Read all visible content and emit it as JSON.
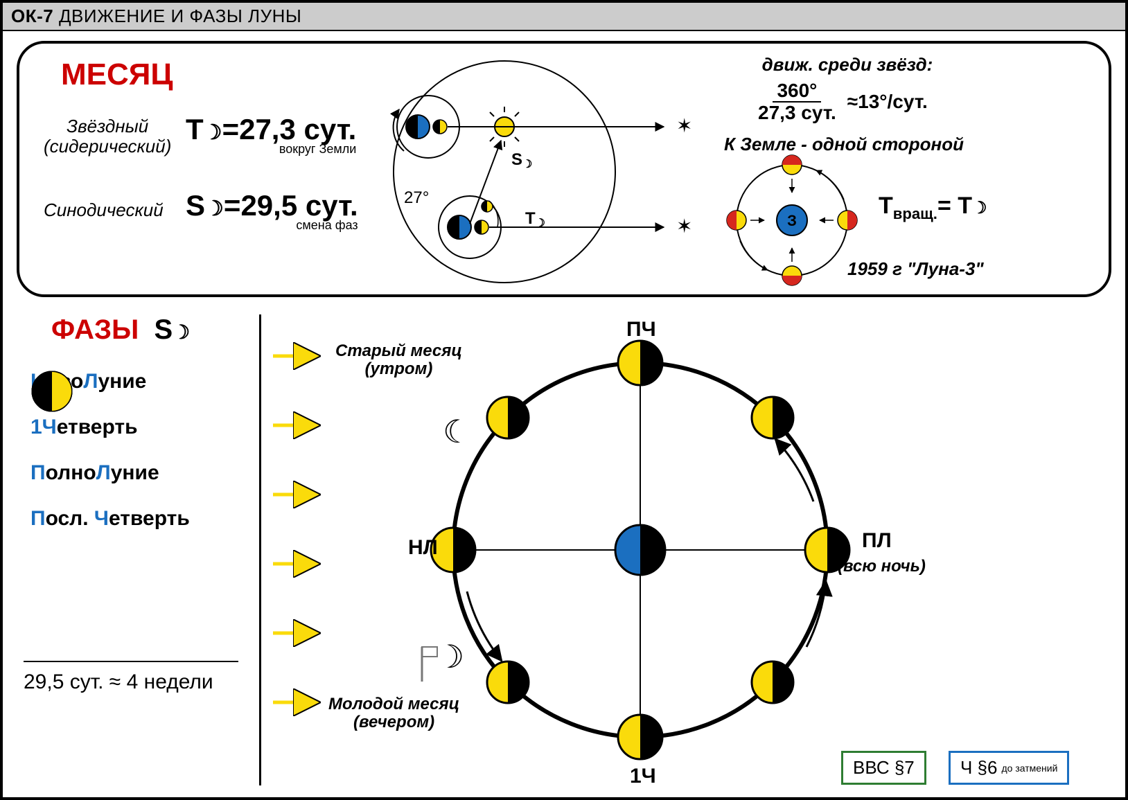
{
  "colors": {
    "yellow": "#fadb0b",
    "blue": "#1b6fc0",
    "red": "#d6271e",
    "black": "#000000",
    "gray": "#cccccc",
    "green": "#2e7d32",
    "blueBox": "#1b6fc0"
  },
  "header": {
    "code": "ОК-7",
    "title": " ДВИЖЕНИЕ И ФАЗЫ ЛУНЫ"
  },
  "month": {
    "heading": "МЕСЯЦ",
    "sidereal": {
      "label1": "Звёздный",
      "label2": "(сидерический)",
      "formula": "T",
      "formula_rhs": "=27,3 сут.",
      "note": "вокруг Земли"
    },
    "synodic": {
      "label": "Синодический",
      "formula": "S",
      "formula_rhs": "=29,5 сут.",
      "note": "смена фаз"
    },
    "diagram": {
      "angle": "27°",
      "S_label": "S",
      "T_label": "T"
    },
    "starMotion": {
      "title": "движ. среди звёзд:",
      "num": "360°",
      "den": "27,3 сут.",
      "approx": "≈13°/сут."
    },
    "oneSide": {
      "title": "К Земле - одной стороной",
      "center": "З",
      "formula_lhs": "T",
      "formula_sub": "вращ.",
      "formula_rhs": "= T",
      "footer": "1959 г  \"Луна-3\""
    }
  },
  "phases": {
    "heading": "ФАЗЫ",
    "heading_sym": "S",
    "items": [
      {
        "type": "new",
        "text": [
          "Н",
          "ово",
          "Л",
          "уние"
        ]
      },
      {
        "type": "first",
        "text": [
          "1Ч",
          "етверть"
        ]
      },
      {
        "type": "full",
        "text": [
          "П",
          "олно",
          "Л",
          "уние"
        ]
      },
      {
        "type": "last",
        "text": [
          "П",
          "осл. ",
          "Ч",
          "етверть"
        ]
      }
    ],
    "summary": "29,5 сут. ≈ 4 недели"
  },
  "big": {
    "labels": {
      "top": "ПЧ",
      "left": "НЛ",
      "right": "ПЛ",
      "right_note": "(всю ночь)",
      "bottom": "1Ч"
    },
    "old": {
      "l1": "Старый месяц",
      "l2": "(утром)"
    },
    "young": {
      "l1": "Молодой месяц",
      "l2": "(вечером)"
    }
  },
  "refs": {
    "bbc": "ВВС §7",
    "ch": "Ч §6",
    "ch_note": "до затмений"
  }
}
